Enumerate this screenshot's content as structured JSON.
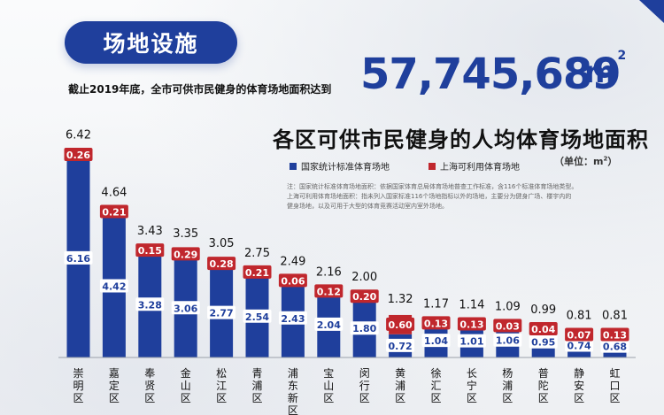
{
  "header": {
    "title": "场地设施",
    "stat_label": "截止2019年底，全市可供市民健身的体育场地面积达到",
    "stat_value": "57,745,689",
    "stat_unit": "m",
    "stat_unit_sup": "2"
  },
  "chart_data": {
    "type": "bar",
    "stacked": true,
    "title": "各区可供市民健身的人均体育场地面积",
    "unit_label": "（单位：m",
    "unit_label_sup": "2",
    "unit_label_close": "）",
    "categories": [
      "崇明区",
      "嘉定区",
      "奉贤区",
      "金山区",
      "松江区",
      "青浦区",
      "浦东新区",
      "宝山区",
      "闵行区",
      "黄浦区",
      "徐汇区",
      "长宁区",
      "杨浦区",
      "普陀区",
      "静安区",
      "虹口区"
    ],
    "totals": [
      "6.42",
      "4.64",
      "3.43",
      "3.35",
      "3.05",
      "2.75",
      "2.49",
      "2.16",
      "2.00",
      "1.32",
      "1.17",
      "1.14",
      "1.09",
      "0.99",
      "0.81",
      "0.81"
    ],
    "series": [
      {
        "name": "国家统计标准体育场地",
        "color": "#1f3f9c",
        "values": [
          6.16,
          4.42,
          3.28,
          3.06,
          2.77,
          2.54,
          2.43,
          2.04,
          1.8,
          0.72,
          1.04,
          1.01,
          1.06,
          0.95,
          0.74,
          0.68
        ],
        "labels": [
          "6.16",
          "4.42",
          "3.28",
          "3.06",
          "2.77",
          "2.54",
          "2.43",
          "2.04",
          "1.80",
          "0.72",
          "1.04",
          "1.01",
          "1.06",
          "0.95",
          "0.74",
          "0.68"
        ]
      },
      {
        "name": "上海可利用体育场地",
        "color": "#c0272d",
        "values": [
          0.26,
          0.21,
          0.15,
          0.29,
          0.28,
          0.21,
          0.06,
          0.12,
          0.2,
          0.6,
          0.13,
          0.13,
          0.03,
          0.04,
          0.07,
          0.13
        ],
        "labels": [
          "0.26",
          "0.21",
          "0.15",
          "0.29",
          "0.28",
          "0.21",
          "0.06",
          "0.12",
          "0.20",
          "0.60",
          "0.13",
          "0.13",
          "0.03",
          "0.04",
          "0.07",
          "0.13"
        ]
      }
    ],
    "ylim": [
      0,
      7
    ]
  },
  "notes": [
    "注：国家统计标准体育场地面积：依据国家体育总局体育场地普查工作标准，含116个标准体育场地类型。",
    "上海可利用体育场地面积：指未列入国家标准116个场地指标以外的场地，主要分为健身广场、楼宇内的",
    "健身场地，以及可用于大型的体育竞赛活动室内室外场地。"
  ]
}
